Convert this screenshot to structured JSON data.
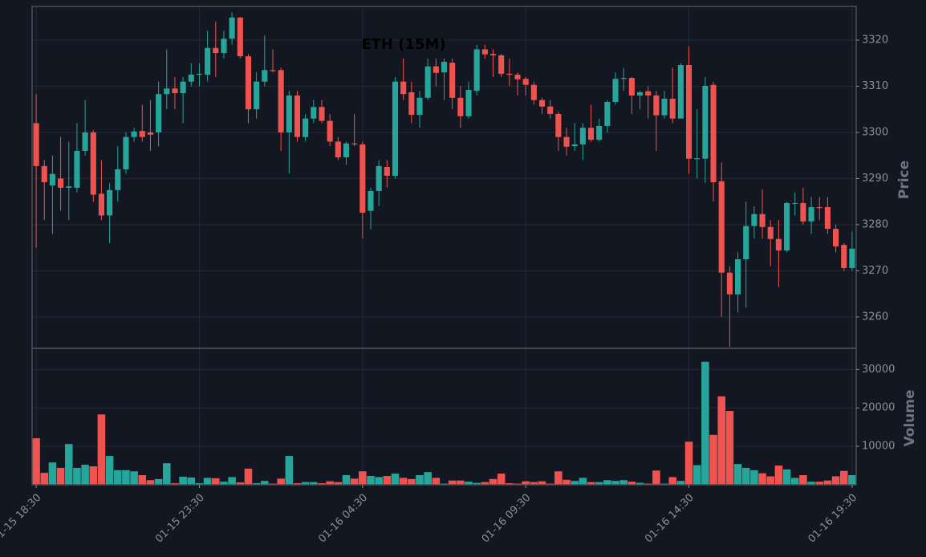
{
  "chart_data": [
    {
      "type": "candlestick",
      "title": "ETH (15M)",
      "ylabel": "Price",
      "up_color": "#26a69a",
      "down_color": "#ef5350",
      "grid": true,
      "xlim": [
        -0.5,
        100.5
      ],
      "xticks": [
        {
          "value": 0,
          "label": "01-15 18:30"
        },
        {
          "value": 20,
          "label": "01-15 23:30"
        },
        {
          "value": 40,
          "label": "01-16 04:30"
        },
        {
          "value": 60,
          "label": "01-16 09:30"
        },
        {
          "value": 80,
          "label": "01-16 14:30"
        },
        {
          "value": 100,
          "label": "01-16 19:30"
        }
      ],
      "ylim": [
        3253.2,
        3327.3
      ],
      "yticks": [
        3260,
        3270,
        3280,
        3290,
        3300,
        3310,
        3320
      ],
      "open": [
        3302,
        3292.7,
        3288.5,
        3290,
        3288,
        3288,
        3296,
        3300,
        3286.7,
        3282,
        3287.5,
        3292,
        3299,
        3300.3,
        3300,
        3300,
        3308.3,
        3309.5,
        3308.5,
        3311,
        3312.5,
        3312.5,
        3318.3,
        3317.2,
        3320.3,
        3324.9,
        3316.5,
        3305,
        3311,
        3313.5,
        3313.5,
        3300,
        3308,
        3299,
        3303,
        3305.5,
        3302.5,
        3298,
        3294.6,
        3297.6,
        3297.4,
        3283,
        3287.3,
        3292.5,
        3290.6,
        3311,
        3308.7,
        3303.8,
        3307.5,
        3314.3,
        3313,
        3315.1,
        3307.5,
        3303.5,
        3309,
        3318,
        3317,
        3316.7,
        3312.7,
        3312.5,
        3311.6,
        3310.3,
        3307,
        3305.6,
        3304,
        3299,
        3297,
        3297.4,
        3301,
        3298.4,
        3301.4,
        3306.6,
        3311.6,
        3311.8,
        3308,
        3308.9,
        3308,
        3303.7,
        3307.3,
        3303,
        3314.6,
        3294.2,
        3294.3,
        3310.3,
        3289.4,
        3269.6,
        3264.9,
        3272.5,
        3279.7,
        3282.3,
        3279.5,
        3276.9,
        3274.4,
        3284.6,
        3284.7,
        3280.7,
        3283.8,
        3283.8,
        3279.1,
        3275.6,
        3270.6
      ],
      "high": [
        3308.3,
        3294,
        3295,
        3299,
        3298,
        3302,
        3307,
        3300.5,
        3294,
        3289,
        3297,
        3300,
        3301,
        3306,
        3307,
        3311,
        3318,
        3312,
        3312,
        3315,
        3315,
        3322,
        3324,
        3322,
        3326,
        3325,
        3317,
        3313,
        3321,
        3318,
        3314,
        3309,
        3309,
        3304,
        3307,
        3307,
        3304,
        3299,
        3298,
        3304,
        3298,
        3288,
        3294,
        3294,
        3312,
        3316,
        3311,
        3309,
        3316,
        3316,
        3316,
        3316,
        3310,
        3311,
        3319,
        3319,
        3318,
        3317,
        3316,
        3313,
        3312,
        3311,
        3307.5,
        3307,
        3304.5,
        3301,
        3302,
        3302,
        3306,
        3303,
        3307,
        3313,
        3314,
        3312,
        3309,
        3310,
        3309,
        3309,
        3314,
        3315,
        3318.7,
        3305,
        3312,
        3311,
        3293.5,
        3271,
        3274,
        3285,
        3284,
        3287.6,
        3281,
        3281,
        3285,
        3287,
        3288,
        3286,
        3286,
        3286,
        3280,
        3276,
        3278.5
      ],
      "low": [
        3275,
        3281,
        3278,
        3283,
        3281,
        3287,
        3295,
        3285,
        3281,
        3276,
        3285,
        3291,
        3298,
        3298,
        3296,
        3297,
        3305,
        3305,
        3302,
        3310,
        3310,
        3311,
        3312,
        3316,
        3319,
        3316,
        3302,
        3303,
        3310,
        3313,
        3296,
        3291,
        3298,
        3298,
        3302,
        3302,
        3297,
        3294,
        3293,
        3297,
        3277,
        3279,
        3284,
        3288,
        3290,
        3307,
        3302,
        3301,
        3307,
        3310,
        3307,
        3305,
        3301,
        3303,
        3308,
        3316,
        3312,
        3312,
        3310,
        3308,
        3308,
        3306,
        3304,
        3303,
        3296,
        3295,
        3296,
        3294,
        3298,
        3298,
        3300,
        3306,
        3309,
        3304,
        3305,
        3303,
        3296,
        3303,
        3302,
        3303,
        3291,
        3290,
        3289,
        3285,
        3260,
        3253.5,
        3261,
        3262,
        3277,
        3277,
        3271,
        3266.5,
        3274,
        3282,
        3280,
        3278,
        3281,
        3278,
        3274,
        3270,
        3270
      ],
      "close": [
        3292.7,
        3289.2,
        3291,
        3288,
        3288.3,
        3296,
        3300,
        3286.5,
        3282,
        3287.5,
        3292,
        3299,
        3300.2,
        3299,
        3299.5,
        3308.3,
        3309.5,
        3308.5,
        3311,
        3312.5,
        3312.7,
        3318.3,
        3317.2,
        3320.3,
        3324.9,
        3316.5,
        3305,
        3311,
        3313.5,
        3313.3,
        3300,
        3308,
        3299,
        3303,
        3305.5,
        3302.5,
        3298,
        3294.6,
        3297.6,
        3297.4,
        3282.6,
        3287.3,
        3292.7,
        3290.6,
        3311,
        3308.3,
        3303.8,
        3307.5,
        3314.3,
        3312.9,
        3315.3,
        3307.5,
        3303.5,
        3309.2,
        3318,
        3316.9,
        3316.7,
        3312.7,
        3312.5,
        3311.5,
        3310.3,
        3307,
        3305.6,
        3304,
        3299,
        3296.9,
        3297.4,
        3301,
        3298.4,
        3301.4,
        3306.6,
        3311.6,
        3311.8,
        3308,
        3308.7,
        3308,
        3303.7,
        3307.3,
        3303,
        3314.6,
        3294.3,
        3294.4,
        3310.1,
        3289.2,
        3269.6,
        3264.9,
        3272.5,
        3279.7,
        3282.3,
        3279.5,
        3276.9,
        3274.4,
        3284.7,
        3284.7,
        3280.7,
        3283.8,
        3283.6,
        3279.1,
        3275.3,
        3270.6,
        3274.8
      ]
    },
    {
      "type": "bar",
      "ylabel": "Volume",
      "grid": true,
      "ylim": [
        0,
        35500
      ],
      "yticks": [
        10000,
        20000,
        30000
      ],
      "values": [
        12100,
        3100,
        5800,
        4400,
        10600,
        4400,
        5200,
        4800,
        18300,
        7500,
        3800,
        3800,
        3500,
        2500,
        1200,
        1500,
        5600,
        400,
        2100,
        1900,
        400,
        1800,
        1700,
        800,
        2000,
        600,
        4200,
        400,
        1000,
        300,
        1600,
        7500,
        400,
        700,
        700,
        400,
        900,
        700,
        2500,
        1600,
        3500,
        2300,
        2000,
        2300,
        2900,
        1800,
        1500,
        2500,
        3300,
        1800,
        300,
        1100,
        1100,
        800,
        500,
        700,
        1500,
        2900,
        400,
        300,
        900,
        700,
        900,
        300,
        3500,
        1300,
        1000,
        1800,
        700,
        700,
        1200,
        1000,
        1200,
        800,
        500,
        300,
        3700,
        300,
        2000,
        1000,
        11200,
        5100,
        32000,
        13000,
        23000,
        19200,
        5400,
        4400,
        3800,
        3000,
        2200,
        5000,
        4000,
        1800,
        2500,
        800,
        800,
        1100,
        2200,
        3600,
        2500
      ]
    }
  ]
}
